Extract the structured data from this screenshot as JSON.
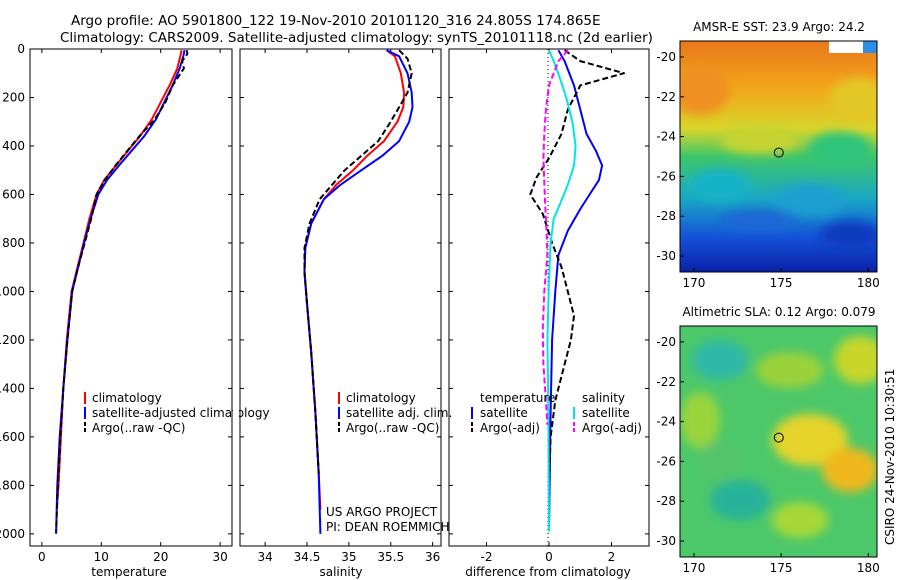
{
  "header": {
    "line1": "Argo profile: AO 5901800_122 19-Nov-2010 20101120_316 24.805S 174.865E",
    "line2": "Climatology: CARS2009. Satellite-adjusted climatology: synTS_20101118.nc (2d earlier)"
  },
  "credits": {
    "project": "US ARGO PROJECT",
    "pi": "PI: DEAN ROEMMICH",
    "stamp": "CSIRO 24-Nov-2010 10:30:51"
  },
  "colors": {
    "climatology": "#ff0000",
    "satellite": "#0000ff",
    "argo": "#000000",
    "sal_satellite": "#00e5e5",
    "sal_argo": "#ff00ff"
  },
  "chart_data": [
    {
      "id": "temperature",
      "type": "line",
      "xlabel": "temperature",
      "xlim": [
        -2,
        32
      ],
      "ylim": [
        0,
        2050
      ],
      "xticks": [
        0,
        10,
        20,
        30
      ],
      "yticks": [
        0,
        200,
        400,
        600,
        800,
        1000,
        1200,
        1400,
        1600,
        1800,
        2000
      ],
      "legend": [
        "climatology",
        "satellite-adjusted climatology",
        "Argo(..raw -QC)"
      ],
      "series": [
        {
          "name": "climatology",
          "color": "#ff0000",
          "dash": "",
          "x": [
            23.5,
            23.3,
            22.8,
            21.5,
            20.0,
            18.5,
            16.5,
            14.5,
            12.5,
            10.5,
            9.2,
            8.0,
            7.0,
            6.0,
            5.0,
            4.2,
            3.6,
            3.2,
            2.8,
            2.5
          ],
          "y": [
            5,
            30,
            80,
            150,
            220,
            290,
            360,
            420,
            480,
            540,
            600,
            700,
            800,
            900,
            1000,
            1200,
            1400,
            1600,
            1800,
            1900
          ]
        },
        {
          "name": "satellite-adjusted climatology",
          "color": "#0000ff",
          "dash": "",
          "x": [
            24.0,
            23.8,
            23.2,
            22.0,
            20.6,
            19.2,
            17.2,
            15.1,
            13.0,
            11.0,
            9.5,
            8.2,
            7.1,
            6.1,
            5.1,
            4.3,
            3.6,
            3.0,
            2.6,
            2.4
          ],
          "y": [
            5,
            30,
            80,
            150,
            220,
            290,
            360,
            420,
            480,
            540,
            600,
            700,
            800,
            900,
            1000,
            1200,
            1400,
            1600,
            1800,
            2000
          ]
        },
        {
          "name": "Argo(..raw -QC)",
          "color": "#000000",
          "dash": "6,3",
          "x": [
            24.4,
            24.5,
            23.6,
            23.9,
            22.0,
            20.8,
            19.0,
            16.4,
            14.4,
            12.4,
            10.6,
            9.2,
            8.3,
            7.2,
            6.1,
            5.1,
            4.3,
            3.6,
            3.1,
            2.7,
            2.4
          ],
          "y": [
            5,
            20,
            50,
            80,
            150,
            220,
            290,
            360,
            420,
            480,
            540,
            600,
            700,
            800,
            900,
            1000,
            1200,
            1400,
            1600,
            1800,
            1990
          ]
        }
      ]
    },
    {
      "id": "salinity",
      "type": "line",
      "xlabel": "salinity",
      "xlim": [
        33.7,
        36.1
      ],
      "ylim": [
        0,
        2050
      ],
      "xticks": [
        34,
        34.5,
        35,
        35.5,
        36
      ],
      "legend": [
        "climatology",
        "satellite adj. clim.",
        "Argo(..raw -QC)"
      ],
      "series": [
        {
          "name": "climatology",
          "color": "#ff0000",
          "dash": "",
          "x": [
            35.45,
            35.55,
            35.62,
            35.66,
            35.65,
            35.58,
            35.42,
            35.22,
            35.05,
            34.85,
            34.7,
            34.55,
            34.48,
            34.47,
            34.5,
            34.55,
            34.6,
            34.64,
            34.66
          ],
          "y": [
            5,
            30,
            100,
            180,
            240,
            300,
            380,
            440,
            500,
            560,
            620,
            720,
            820,
            920,
            1050,
            1250,
            1500,
            1750,
            1900
          ]
        },
        {
          "name": "satellite adj. clim.",
          "color": "#0000ff",
          "dash": "",
          "x": [
            35.45,
            35.6,
            35.7,
            35.75,
            35.76,
            35.72,
            35.6,
            35.4,
            35.15,
            34.9,
            34.7,
            34.55,
            34.48,
            34.47,
            34.5,
            34.55,
            34.6,
            34.64,
            34.66
          ],
          "y": [
            5,
            30,
            100,
            180,
            240,
            300,
            380,
            440,
            500,
            560,
            620,
            720,
            820,
            920,
            1050,
            1250,
            1500,
            1750,
            2000
          ]
        },
        {
          "name": "Argo(..raw -QC)",
          "color": "#000000",
          "dash": "6,3",
          "x": [
            35.6,
            35.7,
            35.75,
            35.7,
            35.6,
            35.5,
            35.35,
            35.15,
            34.95,
            34.8,
            34.65,
            34.53,
            34.47,
            34.47,
            34.5,
            34.55,
            34.6,
            34.64
          ],
          "y": [
            5,
            40,
            100,
            180,
            240,
            300,
            380,
            440,
            500,
            560,
            620,
            720,
            820,
            920,
            1050,
            1250,
            1500,
            1750
          ]
        }
      ]
    },
    {
      "id": "difference",
      "type": "line",
      "xlabel": "difference from climatology",
      "xlim": [
        -3.2,
        3.2
      ],
      "ylim": [
        0,
        2050
      ],
      "xticks": [
        -2,
        0,
        2
      ],
      "legend_temp_title": "temperature",
      "legend_sal_title": "salinity",
      "legend": [
        "satellite",
        "Argo(-adj)",
        "satellite",
        "Argo(-adj)"
      ],
      "series": [
        {
          "name": "satellite",
          "group": "temperature",
          "color": "#0000ff",
          "dash": "",
          "x": [
            0.3,
            0.5,
            0.8,
            1.0,
            1.2,
            1.5,
            1.7,
            1.6,
            1.3,
            1.0,
            0.6,
            0.3,
            0.2,
            0.1,
            0.05,
            0.02,
            0.0
          ],
          "y": [
            5,
            50,
            150,
            250,
            350,
            420,
            480,
            540,
            600,
            660,
            750,
            850,
            1000,
            1200,
            1500,
            1800,
            1990
          ]
        },
        {
          "name": "Argo(-adj)",
          "group": "temperature",
          "color": "#000000",
          "dash": "6,3",
          "x": [
            0.5,
            1.0,
            2.4,
            1.0,
            0.6,
            0.4,
            0.0,
            -0.4,
            -0.6,
            -0.2,
            0.1,
            0.4,
            0.6,
            0.8,
            0.7,
            0.5,
            0.2,
            0.05,
            0.0
          ],
          "y": [
            5,
            50,
            100,
            150,
            250,
            350,
            450,
            530,
            600,
            680,
            800,
            900,
            1000,
            1100,
            1200,
            1300,
            1450,
            1600,
            1800
          ]
        },
        {
          "name": "satellite",
          "group": "salinity",
          "color": "#00e5e5",
          "dash": "",
          "x": [
            0.0,
            0.15,
            0.35,
            0.55,
            0.75,
            0.85,
            0.8,
            0.6,
            0.35,
            0.15,
            0.05,
            0.0,
            -0.05,
            -0.02,
            0.0
          ],
          "y": [
            5,
            50,
            120,
            200,
            300,
            400,
            480,
            560,
            640,
            700,
            800,
            950,
            1200,
            1500,
            1990
          ]
        },
        {
          "name": "Argo(-adj)",
          "group": "salinity",
          "color": "#ff00ff",
          "dash": "6,3",
          "x": [
            0.6,
            0.3,
            0.0,
            -0.1,
            -0.15,
            -0.18,
            -0.15,
            -0.12,
            -0.08,
            -0.05,
            -0.15,
            -0.2,
            -0.18,
            -0.1,
            -0.05
          ],
          "y": [
            5,
            50,
            150,
            250,
            350,
            450,
            550,
            650,
            750,
            850,
            1000,
            1150,
            1300,
            1450,
            1550
          ]
        }
      ]
    },
    {
      "id": "sst_map",
      "type": "heatmap",
      "title": "AMSR-E SST: 23.9 Argo: 24.2",
      "xlim": [
        169.2,
        180.5
      ],
      "ylim": [
        -30.8,
        -19.2
      ],
      "xticks": [
        170,
        175,
        180
      ],
      "yticks": [
        -20,
        -22,
        -24,
        -26,
        -28,
        -30
      ],
      "marker": {
        "lon": 174.865,
        "lat": -24.805
      }
    },
    {
      "id": "sla_map",
      "type": "heatmap",
      "title": "Altimetric SLA: 0.12 Argo: 0.079",
      "xlim": [
        169.2,
        180.5
      ],
      "ylim": [
        -30.8,
        -19.2
      ],
      "xticks": [
        170,
        175,
        180
      ],
      "yticks": [
        -20,
        -22,
        -24,
        -26,
        -28,
        -30
      ],
      "marker": {
        "lon": 174.865,
        "lat": -24.805
      }
    }
  ]
}
